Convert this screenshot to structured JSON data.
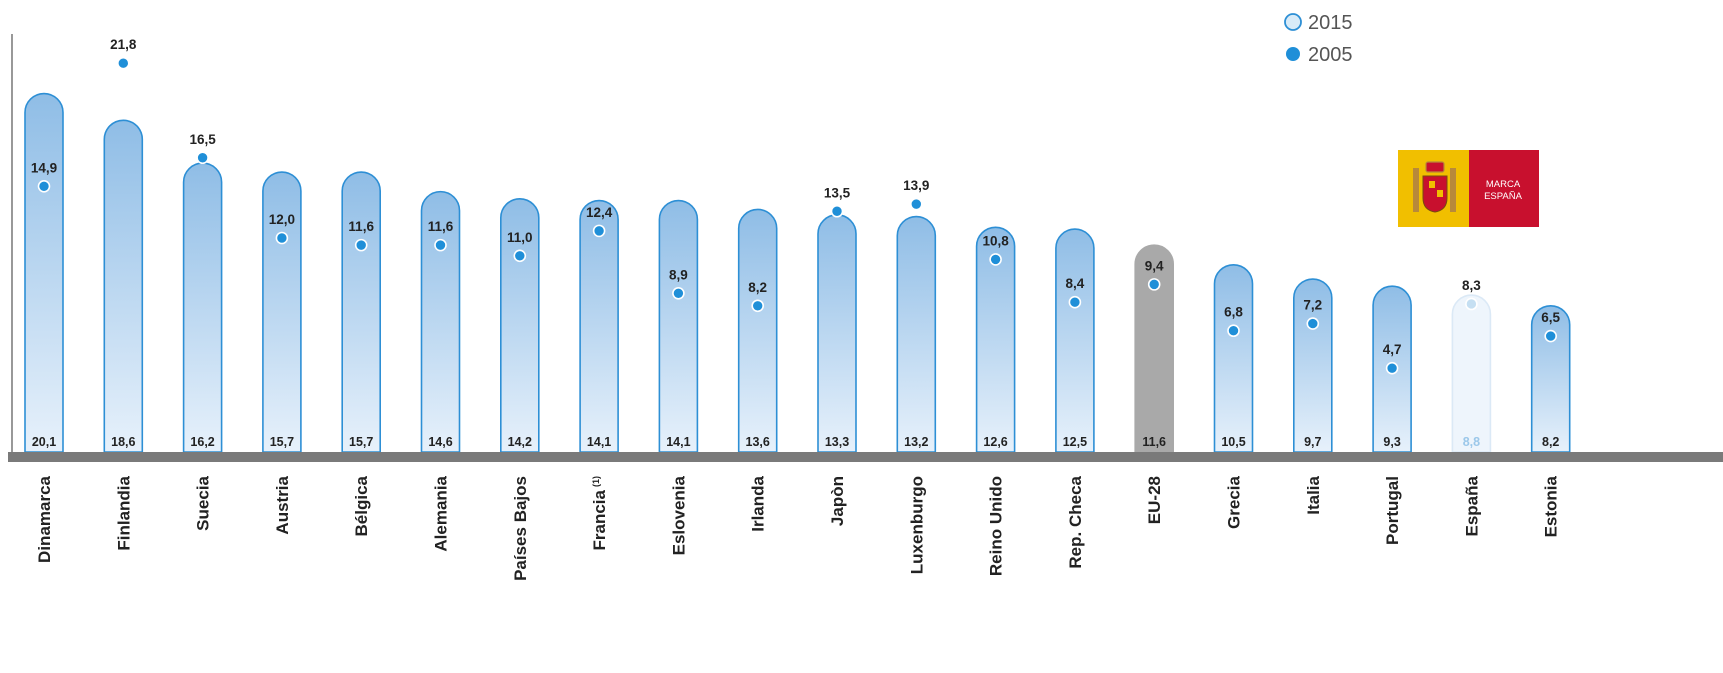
{
  "chart_data": {
    "type": "bar",
    "categories": [
      "Dinamarca",
      "Finlandia",
      "Suecia",
      "Austria",
      "Bélgica",
      "Alemania",
      "Países Bajos",
      "Francia",
      "Eslovenia",
      "Irlanda",
      "Japòn",
      "Luxenburgo",
      "Reino Unido",
      "Rep. Checa",
      "EU-28",
      "Grecia",
      "Italia",
      "Portugal",
      "España",
      "Estonia"
    ],
    "category_notes": [
      "",
      "",
      "",
      "",
      "",
      "",
      "",
      "(1)",
      "",
      "",
      "",
      "",
      "",
      "",
      "",
      "",
      "",
      "",
      "",
      ""
    ],
    "series": [
      {
        "name": "2015",
        "values": [
          20.1,
          18.6,
          16.2,
          15.7,
          15.7,
          14.6,
          14.2,
          14.1,
          14.1,
          13.6,
          13.3,
          13.2,
          12.6,
          12.5,
          11.6,
          10.5,
          9.7,
          9.3,
          8.8,
          8.2
        ]
      },
      {
        "name": "2005",
        "values": [
          14.9,
          21.8,
          16.5,
          12.0,
          11.6,
          11.6,
          11.0,
          12.4,
          8.9,
          8.2,
          13.5,
          13.9,
          10.8,
          8.4,
          9.4,
          6.8,
          7.2,
          4.7,
          8.3,
          6.5
        ]
      }
    ],
    "value_labels": {
      "2015": [
        "20,1",
        "18,6",
        "16,2",
        "15,7",
        "15,7",
        "14,6",
        "14,2",
        "14,1",
        "14,1",
        "13,6",
        "13,3",
        "13,2",
        "12,6",
        "12,5",
        "11,6",
        "10,5",
        "9,7",
        "9,3",
        "8,8",
        "8,2"
      ],
      "2005": [
        "14,9",
        "21,8",
        "16,5",
        "12,0",
        "11,6",
        "11,6",
        "11,0",
        "12,4",
        "8,9",
        "8,2",
        "13,5",
        "13,9",
        "10,8",
        "8,4",
        "9,4",
        "6,8",
        "7,2",
        "4,7",
        "8,3",
        "6,5"
      ]
    },
    "highlight": {
      "EU-28": "grey",
      "España": "light"
    },
    "legend": {
      "position": "top-right",
      "items": [
        "2015",
        "2005"
      ]
    },
    "title": "",
    "xlabel": "",
    "ylabel": "",
    "ylim": [
      0,
      24
    ],
    "grid": false
  },
  "logo": {
    "line1": "MARCA",
    "line2": "ESPAÑA",
    "red": "#c8102e",
    "yellow": "#f1bf00"
  },
  "colors": {
    "bar_top": "#8fbde6",
    "bar_bottom": "#e7f1fb",
    "bar_stroke": "#2d8fd5",
    "dot": "#1f8fd8",
    "eu_bar": "#a9a9a9",
    "spain_bar": "#eef5fc",
    "spain_dot": "#c5dff2",
    "baseline": "#7a7a7a",
    "text": "#222222"
  }
}
